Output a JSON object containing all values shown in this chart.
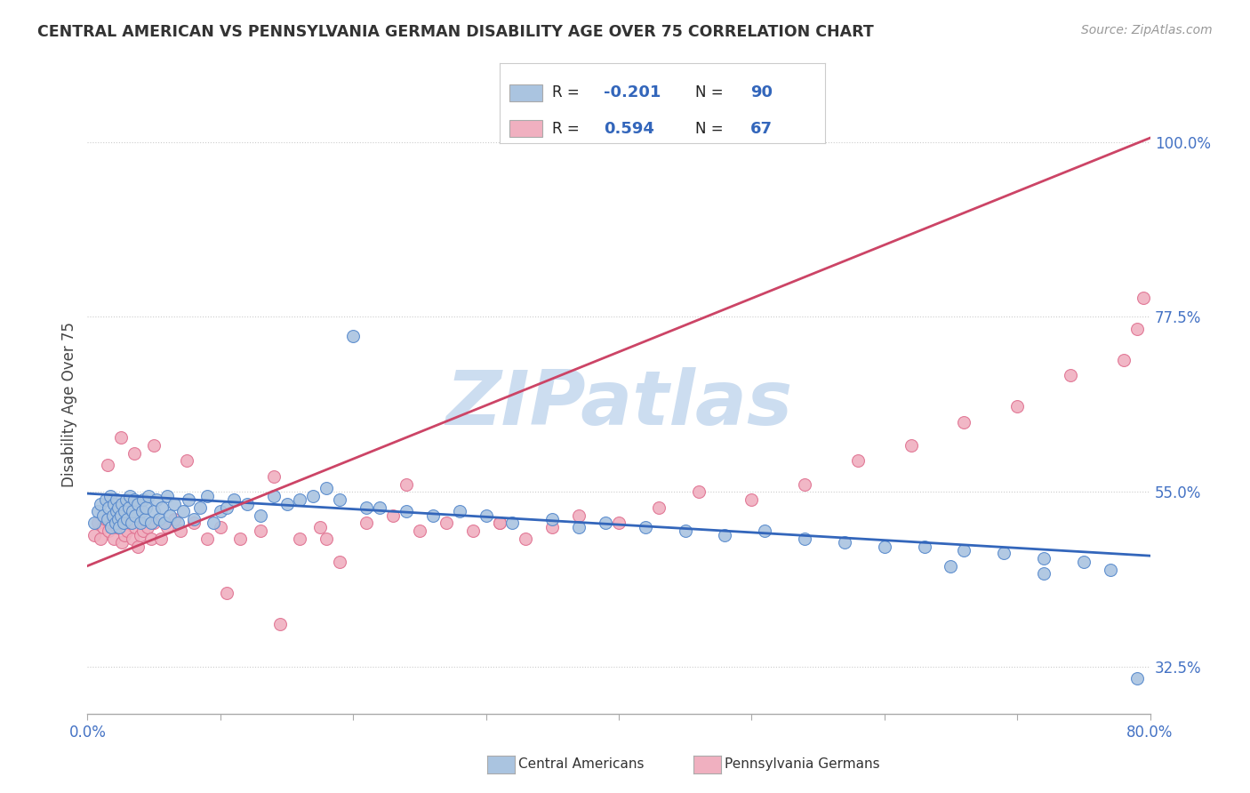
{
  "title": "CENTRAL AMERICAN VS PENNSYLVANIA GERMAN DISABILITY AGE OVER 75 CORRELATION CHART",
  "source": "Source: ZipAtlas.com",
  "ylabel": "Disability Age Over 75",
  "xmin": 0.0,
  "xmax": 0.8,
  "ymin": 0.265,
  "ymax": 1.06,
  "yticks": [
    0.325,
    0.55,
    0.775,
    1.0
  ],
  "ytick_labels": [
    "32.5%",
    "55.0%",
    "77.5%",
    "100.0%"
  ],
  "xticks": [
    0.0,
    0.1,
    0.2,
    0.3,
    0.4,
    0.5,
    0.6,
    0.7,
    0.8
  ],
  "xtick_labels": [
    "0.0%",
    "",
    "",
    "",
    "",
    "",
    "",
    "",
    "80.0%"
  ],
  "blue_R": -0.201,
  "blue_N": 90,
  "pink_R": 0.594,
  "pink_N": 67,
  "blue_color": "#aac4e0",
  "pink_color": "#f0b0c0",
  "blue_edge_color": "#5588cc",
  "pink_edge_color": "#e07090",
  "blue_line_color": "#3366bb",
  "pink_line_color": "#cc4466",
  "label_color": "#4472c4",
  "watermark_color": "#ccddf0",
  "watermark_text": "ZIPatlas",
  "background_color": "#ffffff",
  "grid_color": "#cccccc",
  "blue_trend_x": [
    0.0,
    0.8
  ],
  "blue_trend_y": [
    0.548,
    0.468
  ],
  "pink_trend_x": [
    0.0,
    0.8
  ],
  "pink_trend_y": [
    0.455,
    1.005
  ],
  "blue_scatter_x": [
    0.005,
    0.008,
    0.01,
    0.012,
    0.014,
    0.015,
    0.016,
    0.017,
    0.018,
    0.019,
    0.02,
    0.021,
    0.022,
    0.022,
    0.023,
    0.023,
    0.024,
    0.025,
    0.026,
    0.027,
    0.028,
    0.029,
    0.03,
    0.031,
    0.032,
    0.033,
    0.034,
    0.035,
    0.036,
    0.038,
    0.04,
    0.041,
    0.042,
    0.043,
    0.044,
    0.046,
    0.048,
    0.05,
    0.052,
    0.054,
    0.056,
    0.058,
    0.06,
    0.062,
    0.065,
    0.068,
    0.072,
    0.076,
    0.08,
    0.085,
    0.09,
    0.095,
    0.1,
    0.105,
    0.11,
    0.12,
    0.13,
    0.14,
    0.15,
    0.16,
    0.17,
    0.18,
    0.19,
    0.2,
    0.21,
    0.22,
    0.24,
    0.26,
    0.28,
    0.3,
    0.32,
    0.35,
    0.37,
    0.39,
    0.42,
    0.45,
    0.48,
    0.51,
    0.54,
    0.57,
    0.6,
    0.63,
    0.66,
    0.69,
    0.72,
    0.75,
    0.65,
    0.72,
    0.77,
    0.79
  ],
  "blue_scatter_y": [
    0.51,
    0.525,
    0.535,
    0.52,
    0.54,
    0.515,
    0.53,
    0.545,
    0.505,
    0.52,
    0.535,
    0.51,
    0.525,
    0.54,
    0.515,
    0.53,
    0.505,
    0.52,
    0.535,
    0.51,
    0.525,
    0.54,
    0.515,
    0.53,
    0.545,
    0.51,
    0.525,
    0.54,
    0.52,
    0.535,
    0.51,
    0.525,
    0.54,
    0.515,
    0.53,
    0.545,
    0.51,
    0.525,
    0.54,
    0.515,
    0.53,
    0.51,
    0.545,
    0.52,
    0.535,
    0.51,
    0.525,
    0.54,
    0.515,
    0.53,
    0.545,
    0.51,
    0.525,
    0.53,
    0.54,
    0.535,
    0.52,
    0.545,
    0.535,
    0.54,
    0.545,
    0.555,
    0.54,
    0.75,
    0.53,
    0.53,
    0.525,
    0.52,
    0.525,
    0.52,
    0.51,
    0.515,
    0.505,
    0.51,
    0.505,
    0.5,
    0.495,
    0.5,
    0.49,
    0.485,
    0.48,
    0.48,
    0.475,
    0.472,
    0.465,
    0.46,
    0.455,
    0.445,
    0.45,
    0.31
  ],
  "pink_scatter_x": [
    0.005,
    0.008,
    0.01,
    0.012,
    0.014,
    0.016,
    0.018,
    0.02,
    0.022,
    0.024,
    0.026,
    0.028,
    0.03,
    0.032,
    0.034,
    0.036,
    0.038,
    0.04,
    0.042,
    0.045,
    0.048,
    0.05,
    0.055,
    0.06,
    0.065,
    0.07,
    0.08,
    0.09,
    0.1,
    0.115,
    0.13,
    0.145,
    0.16,
    0.175,
    0.19,
    0.21,
    0.23,
    0.25,
    0.27,
    0.29,
    0.31,
    0.33,
    0.35,
    0.37,
    0.4,
    0.43,
    0.46,
    0.5,
    0.54,
    0.58,
    0.62,
    0.66,
    0.7,
    0.74,
    0.78,
    0.79,
    0.795,
    0.015,
    0.025,
    0.035,
    0.05,
    0.075,
    0.105,
    0.14,
    0.18,
    0.24,
    0.31
  ],
  "pink_scatter_y": [
    0.495,
    0.51,
    0.49,
    0.505,
    0.515,
    0.5,
    0.51,
    0.49,
    0.505,
    0.51,
    0.485,
    0.495,
    0.5,
    0.51,
    0.49,
    0.505,
    0.48,
    0.495,
    0.5,
    0.505,
    0.49,
    0.51,
    0.49,
    0.505,
    0.515,
    0.5,
    0.51,
    0.49,
    0.505,
    0.49,
    0.5,
    0.38,
    0.49,
    0.505,
    0.46,
    0.51,
    0.52,
    0.5,
    0.51,
    0.5,
    0.51,
    0.49,
    0.505,
    0.52,
    0.51,
    0.53,
    0.55,
    0.54,
    0.56,
    0.59,
    0.61,
    0.64,
    0.66,
    0.7,
    0.72,
    0.76,
    0.8,
    0.585,
    0.62,
    0.6,
    0.61,
    0.59,
    0.42,
    0.57,
    0.49,
    0.56,
    0.51
  ]
}
